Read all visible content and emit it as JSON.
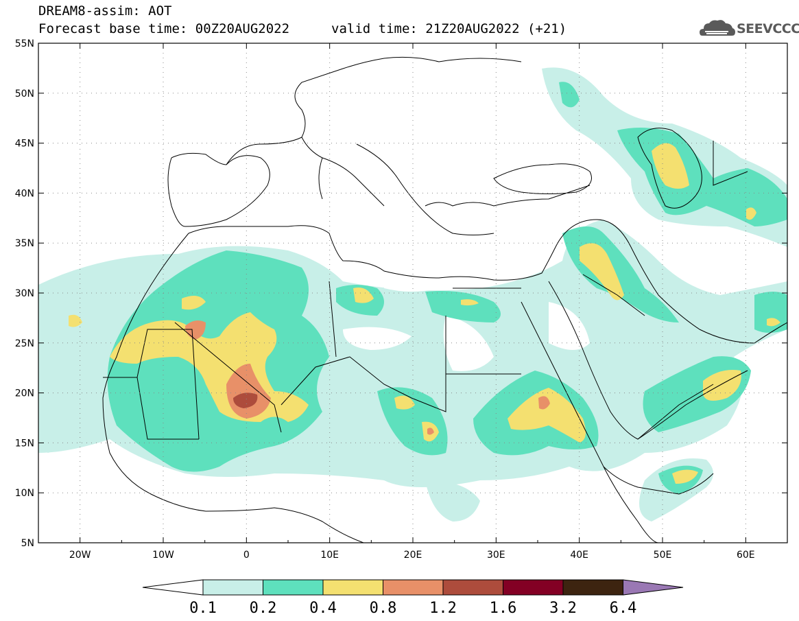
{
  "header": {
    "line1": "DREAM8-assim: AOT",
    "line2": "Forecast base time: 00Z20AUG2022",
    "line3": "valid time: 21Z20AUG2022 (+21)"
  },
  "logo": {
    "text": "SEEVCCC",
    "icon": "cloud-icon"
  },
  "map": {
    "lon_range": [
      -25,
      65
    ],
    "lat_range": [
      5,
      55
    ],
    "lat_labels": [
      "55N",
      "50N",
      "45N",
      "40N",
      "35N",
      "30N",
      "25N",
      "20N",
      "15N",
      "10N",
      "5N"
    ],
    "lon_labels": [
      "20W",
      "10W",
      "0",
      "10E",
      "20E",
      "30E",
      "40E",
      "50E",
      "60E"
    ],
    "grid": "dotted"
  },
  "colorbar": {
    "levels": [
      "0.1",
      "0.2",
      "0.4",
      "0.8",
      "1.2",
      "1.6",
      "3.2",
      "6.4"
    ],
    "colors": {
      "below": "#ffffff",
      "c0_1": "#c8efe8",
      "c0_2": "#5ee0bd",
      "c0_4": "#f4e070",
      "c0_8": "#e89068",
      "c1_2": "#ad4c3c",
      "c1_6": "#830024",
      "c3_2": "#3d2410",
      "above": "#9a78b4"
    }
  }
}
